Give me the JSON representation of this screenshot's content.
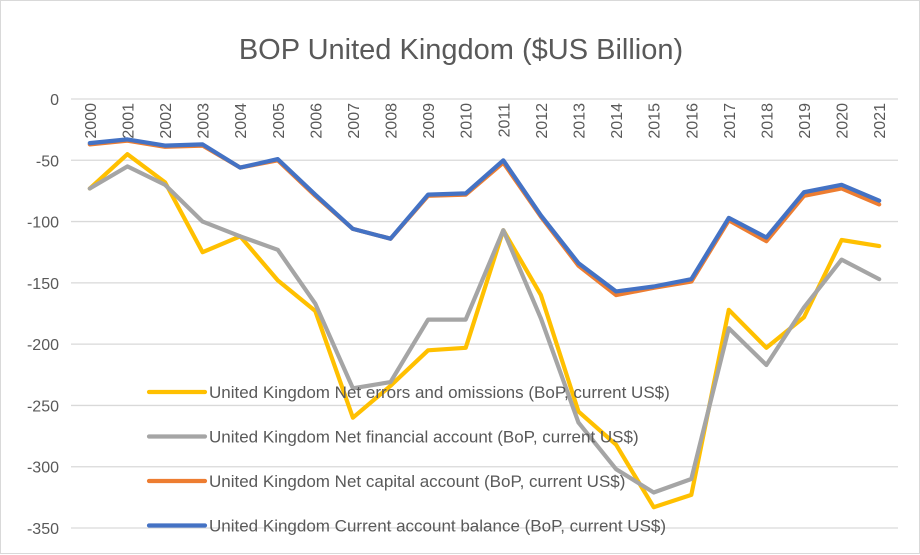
{
  "chart_data": {
    "type": "line",
    "title": "BOP United Kingdom ($US Billion)",
    "xlabel": "",
    "ylabel": "",
    "ylim": [
      -350,
      0
    ],
    "yticks": [
      0,
      -50,
      -100,
      -150,
      -200,
      -250,
      -300,
      -350
    ],
    "categories": [
      "2000",
      "2001",
      "2002",
      "2003",
      "2004",
      "2005",
      "2006",
      "2007",
      "2008",
      "2009",
      "2010",
      "2011",
      "2012",
      "2013",
      "2014",
      "2015",
      "2016",
      "2017",
      "2018",
      "2019",
      "2020",
      "2021"
    ],
    "grid": true,
    "legend_position": "bottom-center, overlapping plot",
    "series": [
      {
        "name": "United Kingdom Current account balance (BoP, current US$)",
        "color": "#4472c4",
        "values": [
          -36,
          -33,
          -38,
          -37,
          -56,
          -49,
          -78,
          -106,
          -114,
          -78,
          -77,
          -50,
          -95,
          -134,
          -157,
          -153,
          -147,
          -97,
          -113,
          -76,
          -70,
          -83
        ]
      },
      {
        "name": "United Kingdom Net capital account (BoP, current US$)",
        "color": "#ed7d31",
        "values": [
          -37,
          -34,
          -39,
          -38,
          -56,
          -50,
          -79,
          -106,
          -114,
          -79,
          -78,
          -52,
          -96,
          -136,
          -160,
          -154,
          -149,
          -99,
          -116,
          -79,
          -73,
          -86
        ]
      },
      {
        "name": "United Kingdom Net financial account (BoP, current US$)",
        "color": "#a5a5a5",
        "values": [
          -73,
          -55,
          -70,
          -100,
          -112,
          -123,
          -167,
          -236,
          -231,
          -180,
          -180,
          -107,
          -179,
          -264,
          -302,
          -321,
          -310,
          -187,
          -217,
          -170,
          -131,
          -147
        ]
      },
      {
        "name": "United Kingdom Net errors and omissions (BoP, current US$)",
        "color": "#ffc000",
        "values": [
          -73,
          -45,
          -68,
          -125,
          -112,
          -148,
          -173,
          -260,
          -234,
          -205,
          -203,
          -107,
          -160,
          -255,
          -282,
          -333,
          -323,
          -172,
          -203,
          -178,
          -115,
          -120
        ]
      }
    ]
  }
}
